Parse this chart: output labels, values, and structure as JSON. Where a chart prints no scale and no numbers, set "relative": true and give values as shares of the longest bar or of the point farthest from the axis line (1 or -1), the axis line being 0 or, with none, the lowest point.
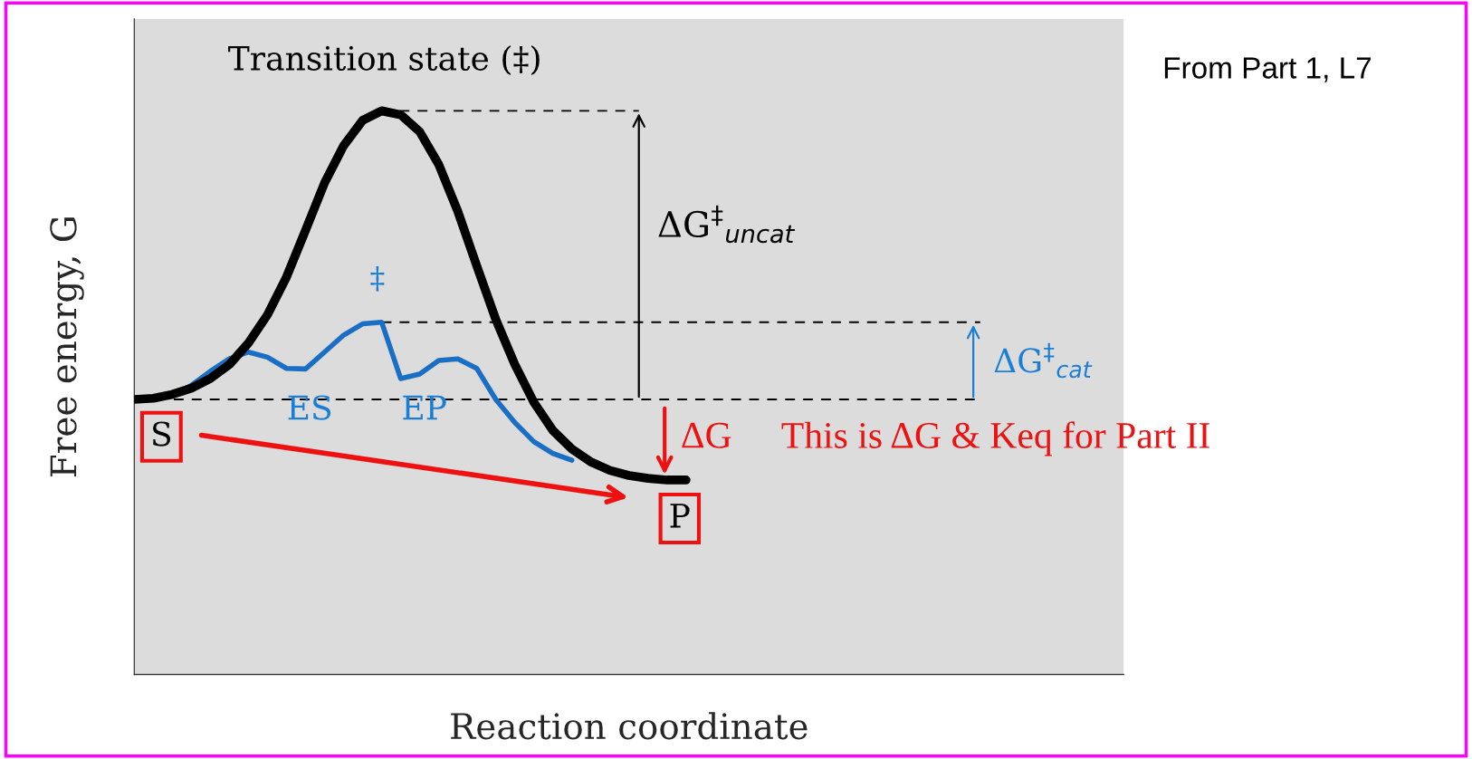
{
  "chart_data": {
    "type": "line",
    "relative": true,
    "xlabel": "Reaction coordinate",
    "ylabel": "Free energy, G",
    "categories": [
      null,
      null,
      null,
      null,
      null,
      null,
      null,
      null,
      null,
      null,
      null,
      null,
      null,
      null,
      null,
      null,
      null,
      null,
      null,
      null,
      null,
      null,
      null,
      null,
      null,
      null,
      null,
      null,
      null,
      null,
      null,
      null,
      null,
      null,
      null,
      null,
      null,
      null,
      null,
      null,
      null,
      null,
      null,
      null,
      null,
      null,
      null,
      null,
      null,
      null,
      null,
      null,
      null
    ],
    "series": [
      {
        "color": "#000000",
        "values": [
          0.488,
          0.49,
          0.497,
          0.508,
          0.525,
          0.55,
          0.588,
          0.638,
          0.705,
          0.788,
          0.872,
          0.938,
          0.983,
          1.0,
          0.993,
          0.963,
          0.905,
          0.822,
          0.725,
          0.63,
          0.55,
          0.483,
          0.433,
          0.4,
          0.377,
          0.362,
          0.353,
          0.348,
          0.345,
          0.345,
          null,
          null,
          null,
          null,
          null,
          null,
          null,
          null,
          null,
          null,
          null,
          null,
          null,
          null,
          null,
          null,
          null,
          null,
          null,
          null,
          null,
          null,
          null
        ]
      },
      {
        "color": "#1a6fc4",
        "values": [
          null,
          null,
          0.495,
          0.513,
          0.538,
          0.56,
          0.572,
          0.563,
          0.543,
          0.542,
          0.572,
          0.602,
          0.622,
          0.625,
          0.525,
          0.533,
          0.557,
          0.56,
          0.543,
          0.488,
          0.447,
          0.413,
          0.392,
          0.38,
          null,
          null,
          null,
          null,
          null,
          null,
          null,
          null,
          null,
          null,
          null,
          null,
          null,
          null,
          null,
          null,
          null,
          null,
          null,
          null,
          null,
          null,
          null,
          null,
          null,
          null,
          null,
          null,
          null
        ]
      }
    ],
    "ref_lines": [
      {
        "axis": "y",
        "value": 1.0,
        "color": "#000000",
        "line_style": "dashed"
      },
      {
        "axis": "y",
        "value": 0.625,
        "color": "#000000",
        "line_style": "dashed"
      },
      {
        "axis": "y",
        "value": 0.488,
        "color": "#000000",
        "line_style": "dashed"
      }
    ],
    "annotations": [
      "Transition state (‡)",
      "From Part 1, L7",
      "ΔG$^{‡}$$_{uncat}$",
      "‡",
      "ΔG$^{‡}$$_{cat}$",
      "ES",
      "EP",
      "S",
      "P",
      "ΔG",
      "This is ΔG & Keq for Part II"
    ]
  }
}
